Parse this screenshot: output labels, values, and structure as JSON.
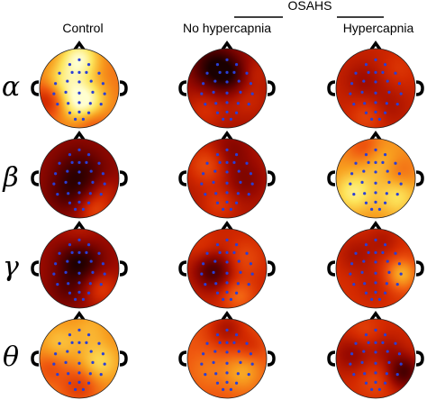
{
  "group_label": "OSAHS",
  "columns": [
    {
      "label": "Control"
    },
    {
      "label": "No hypercapnia"
    },
    {
      "label": "Hypercapnia"
    }
  ],
  "rows": [
    {
      "label": "α"
    },
    {
      "label": "β"
    },
    {
      "label": "γ"
    },
    {
      "label": "θ"
    }
  ],
  "colors": {
    "colormap": [
      "#1a0000",
      "#5a0000",
      "#9a0a00",
      "#d42a00",
      "#f05a10",
      "#f8a020",
      "#fde45a",
      "#ffffd0"
    ],
    "electrode": "#2a3fd6",
    "outline": "#000000"
  },
  "electrodes": [
    [
      0,
      -0.72
    ],
    [
      -0.24,
      -0.6
    ],
    [
      0.24,
      -0.6
    ],
    [
      -0.5,
      -0.38
    ],
    [
      -0.18,
      -0.4
    ],
    [
      0.0,
      -0.4
    ],
    [
      0.18,
      -0.4
    ],
    [
      0.5,
      -0.38
    ],
    [
      -0.6,
      -0.12
    ],
    [
      -0.3,
      -0.18
    ],
    [
      0.0,
      -0.16
    ],
    [
      0.3,
      -0.18
    ],
    [
      0.6,
      -0.12
    ],
    [
      -0.64,
      0.14
    ],
    [
      -0.34,
      0.1
    ],
    [
      0.0,
      0.12
    ],
    [
      0.34,
      0.1
    ],
    [
      0.64,
      0.14
    ],
    [
      -0.55,
      0.4
    ],
    [
      -0.28,
      0.38
    ],
    [
      0.0,
      0.36
    ],
    [
      0.28,
      0.38
    ],
    [
      0.55,
      0.4
    ],
    [
      -0.24,
      0.62
    ],
    [
      0.0,
      0.6
    ],
    [
      0.24,
      0.62
    ],
    [
      -0.1,
      0.78
    ],
    [
      0.1,
      0.78
    ]
  ],
  "maps": [
    [
      {
        "base": 0.62,
        "blobs": [
          [
            0.1,
            0.35,
            0.38,
            0.42
          ],
          [
            -0.45,
            -0.15,
            0.35,
            0.2
          ],
          [
            0.0,
            -0.75,
            0.35,
            0.35
          ],
          [
            -0.8,
            0.3,
            0.3,
            -0.25
          ],
          [
            0.3,
            0.85,
            0.3,
            -0.15
          ]
        ]
      },
      {
        "base": 0.32,
        "blobs": [
          [
            -0.35,
            -0.55,
            0.4,
            -0.28
          ],
          [
            0.1,
            -0.3,
            0.35,
            -0.2
          ],
          [
            0.5,
            0.25,
            0.35,
            0.1
          ],
          [
            -0.55,
            0.55,
            0.35,
            0.12
          ],
          [
            0.7,
            -0.4,
            0.25,
            0.08
          ]
        ]
      },
      {
        "base": 0.4,
        "blobs": [
          [
            -0.3,
            -0.2,
            0.35,
            -0.1
          ],
          [
            0.3,
            0.45,
            0.35,
            -0.08
          ],
          [
            -0.2,
            0.7,
            0.3,
            0.12
          ],
          [
            0.6,
            -0.5,
            0.3,
            0.06
          ]
        ]
      }
    ],
    [
      {
        "base": 0.28,
        "blobs": [
          [
            0.0,
            -0.1,
            0.45,
            -0.22
          ],
          [
            -0.35,
            0.45,
            0.35,
            -0.1
          ],
          [
            0.4,
            0.8,
            0.3,
            0.22
          ],
          [
            0.65,
            0.3,
            0.25,
            0.1
          ]
        ]
      },
      {
        "base": 0.35,
        "blobs": [
          [
            -0.5,
            -0.35,
            0.35,
            0.18
          ],
          [
            0.45,
            0.05,
            0.35,
            -0.12
          ],
          [
            0.1,
            -0.7,
            0.35,
            -0.12
          ],
          [
            -0.2,
            0.65,
            0.3,
            0.12
          ]
        ]
      },
      {
        "base": 0.68,
        "blobs": [
          [
            0.1,
            -0.4,
            0.35,
            0.1
          ],
          [
            -0.55,
            0.35,
            0.35,
            0.22
          ],
          [
            0.55,
            0.45,
            0.35,
            0.18
          ],
          [
            -0.3,
            -0.8,
            0.3,
            -0.15
          ],
          [
            0.6,
            -0.15,
            0.3,
            -0.1
          ]
        ]
      }
    ],
    [
      {
        "base": 0.3,
        "blobs": [
          [
            0.0,
            -0.2,
            0.4,
            -0.3
          ],
          [
            -0.3,
            0.55,
            0.35,
            -0.12
          ],
          [
            0.55,
            0.5,
            0.3,
            0.18
          ],
          [
            0.0,
            -0.8,
            0.35,
            0.1
          ]
        ]
      },
      {
        "base": 0.4,
        "blobs": [
          [
            -0.35,
            0.05,
            0.35,
            -0.3
          ],
          [
            0.45,
            -0.25,
            0.35,
            0.12
          ],
          [
            0.3,
            0.7,
            0.3,
            0.2
          ],
          [
            -0.6,
            -0.5,
            0.3,
            0.08
          ]
        ]
      },
      {
        "base": 0.45,
        "blobs": [
          [
            -0.5,
            -0.35,
            0.35,
            -0.12
          ],
          [
            0.65,
            0.15,
            0.3,
            0.3
          ],
          [
            0.0,
            0.4,
            0.35,
            -0.08
          ],
          [
            0.2,
            -0.7,
            0.3,
            -0.1
          ]
        ]
      }
    ],
    [
      {
        "base": 0.66,
        "blobs": [
          [
            0.0,
            0.7,
            0.35,
            -0.18
          ],
          [
            -0.5,
            -0.4,
            0.35,
            0.12
          ],
          [
            0.5,
            0.1,
            0.35,
            0.18
          ],
          [
            -0.75,
            0.25,
            0.28,
            -0.12
          ],
          [
            0.3,
            -0.75,
            0.3,
            0.08
          ]
        ]
      },
      {
        "base": 0.55,
        "blobs": [
          [
            0.0,
            -0.75,
            0.35,
            -0.22
          ],
          [
            0.4,
            0.35,
            0.35,
            0.18
          ],
          [
            -0.5,
            0.3,
            0.35,
            0.08
          ],
          [
            0.6,
            -0.3,
            0.25,
            -0.1
          ]
        ]
      },
      {
        "base": 0.42,
        "blobs": [
          [
            0.7,
            0.35,
            0.3,
            -0.32
          ],
          [
            -0.6,
            -0.1,
            0.35,
            -0.15
          ],
          [
            0.0,
            0.55,
            0.35,
            0.1
          ],
          [
            -0.3,
            -0.7,
            0.3,
            0.08
          ],
          [
            0.3,
            -0.2,
            0.3,
            -0.1
          ]
        ]
      }
    ]
  ]
}
